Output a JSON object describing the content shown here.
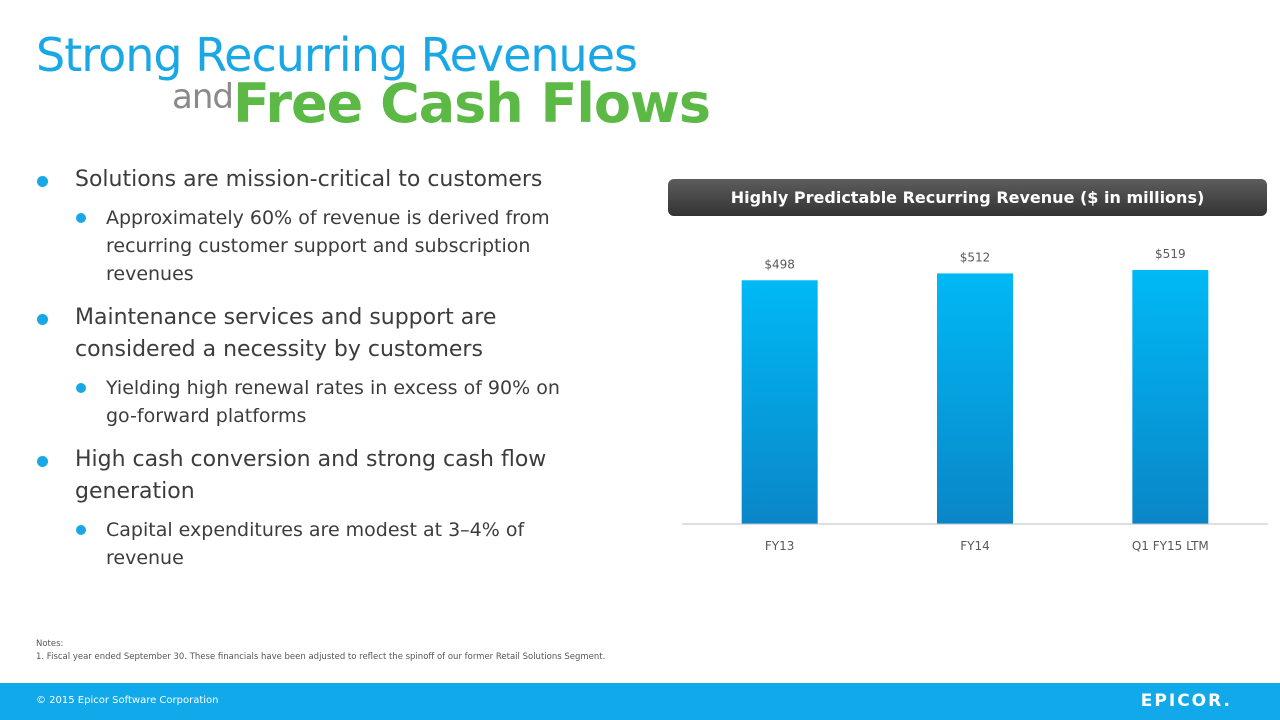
{
  "title": {
    "line1": "Strong Recurring Revenues",
    "and": "and",
    "line2": "Free Cash Flows"
  },
  "bullets": [
    {
      "text": "Solutions are mission-critical to customers",
      "subs": [
        "Approximately 60% of revenue is derived from recurring customer support and subscription revenues"
      ]
    },
    {
      "text": "Maintenance services and support are considered a necessity by customers",
      "subs": [
        "Yielding high renewal rates in excess of 90% on go-forward platforms"
      ]
    },
    {
      "text": "High cash conversion and strong cash flow generation",
      "subs": [
        "Capital expenditures are modest at 3–4% of revenue"
      ]
    }
  ],
  "chart_data": {
    "type": "bar",
    "title": "Highly Predictable Recurring Revenue ($ in millions)",
    "categories": [
      "FY13",
      "FY14",
      "Q1 FY15 LTM"
    ],
    "values": [
      498,
      512,
      519
    ],
    "labels": [
      "$498",
      "$512",
      "$519"
    ],
    "xlabel": "",
    "ylabel": "",
    "grid": false,
    "legend": "none",
    "colors": {
      "bar_top": "#00b9f5",
      "bar_bottom": "#0a86c8",
      "axis": "#bfbfbf"
    }
  },
  "notes": {
    "heading": "Notes:",
    "line1": "1. Fiscal year ended September 30.  These financials have been adjusted to reflect the spinoff of our former Retail Solutions Segment."
  },
  "footer": {
    "copyright": "© 2015 Epicor Software Corporation",
    "logo": "EPICOR."
  },
  "colors": {
    "accent_blue": "#1aa7e6",
    "accent_green": "#5cb946",
    "footer_blue": "#12a9ea"
  }
}
